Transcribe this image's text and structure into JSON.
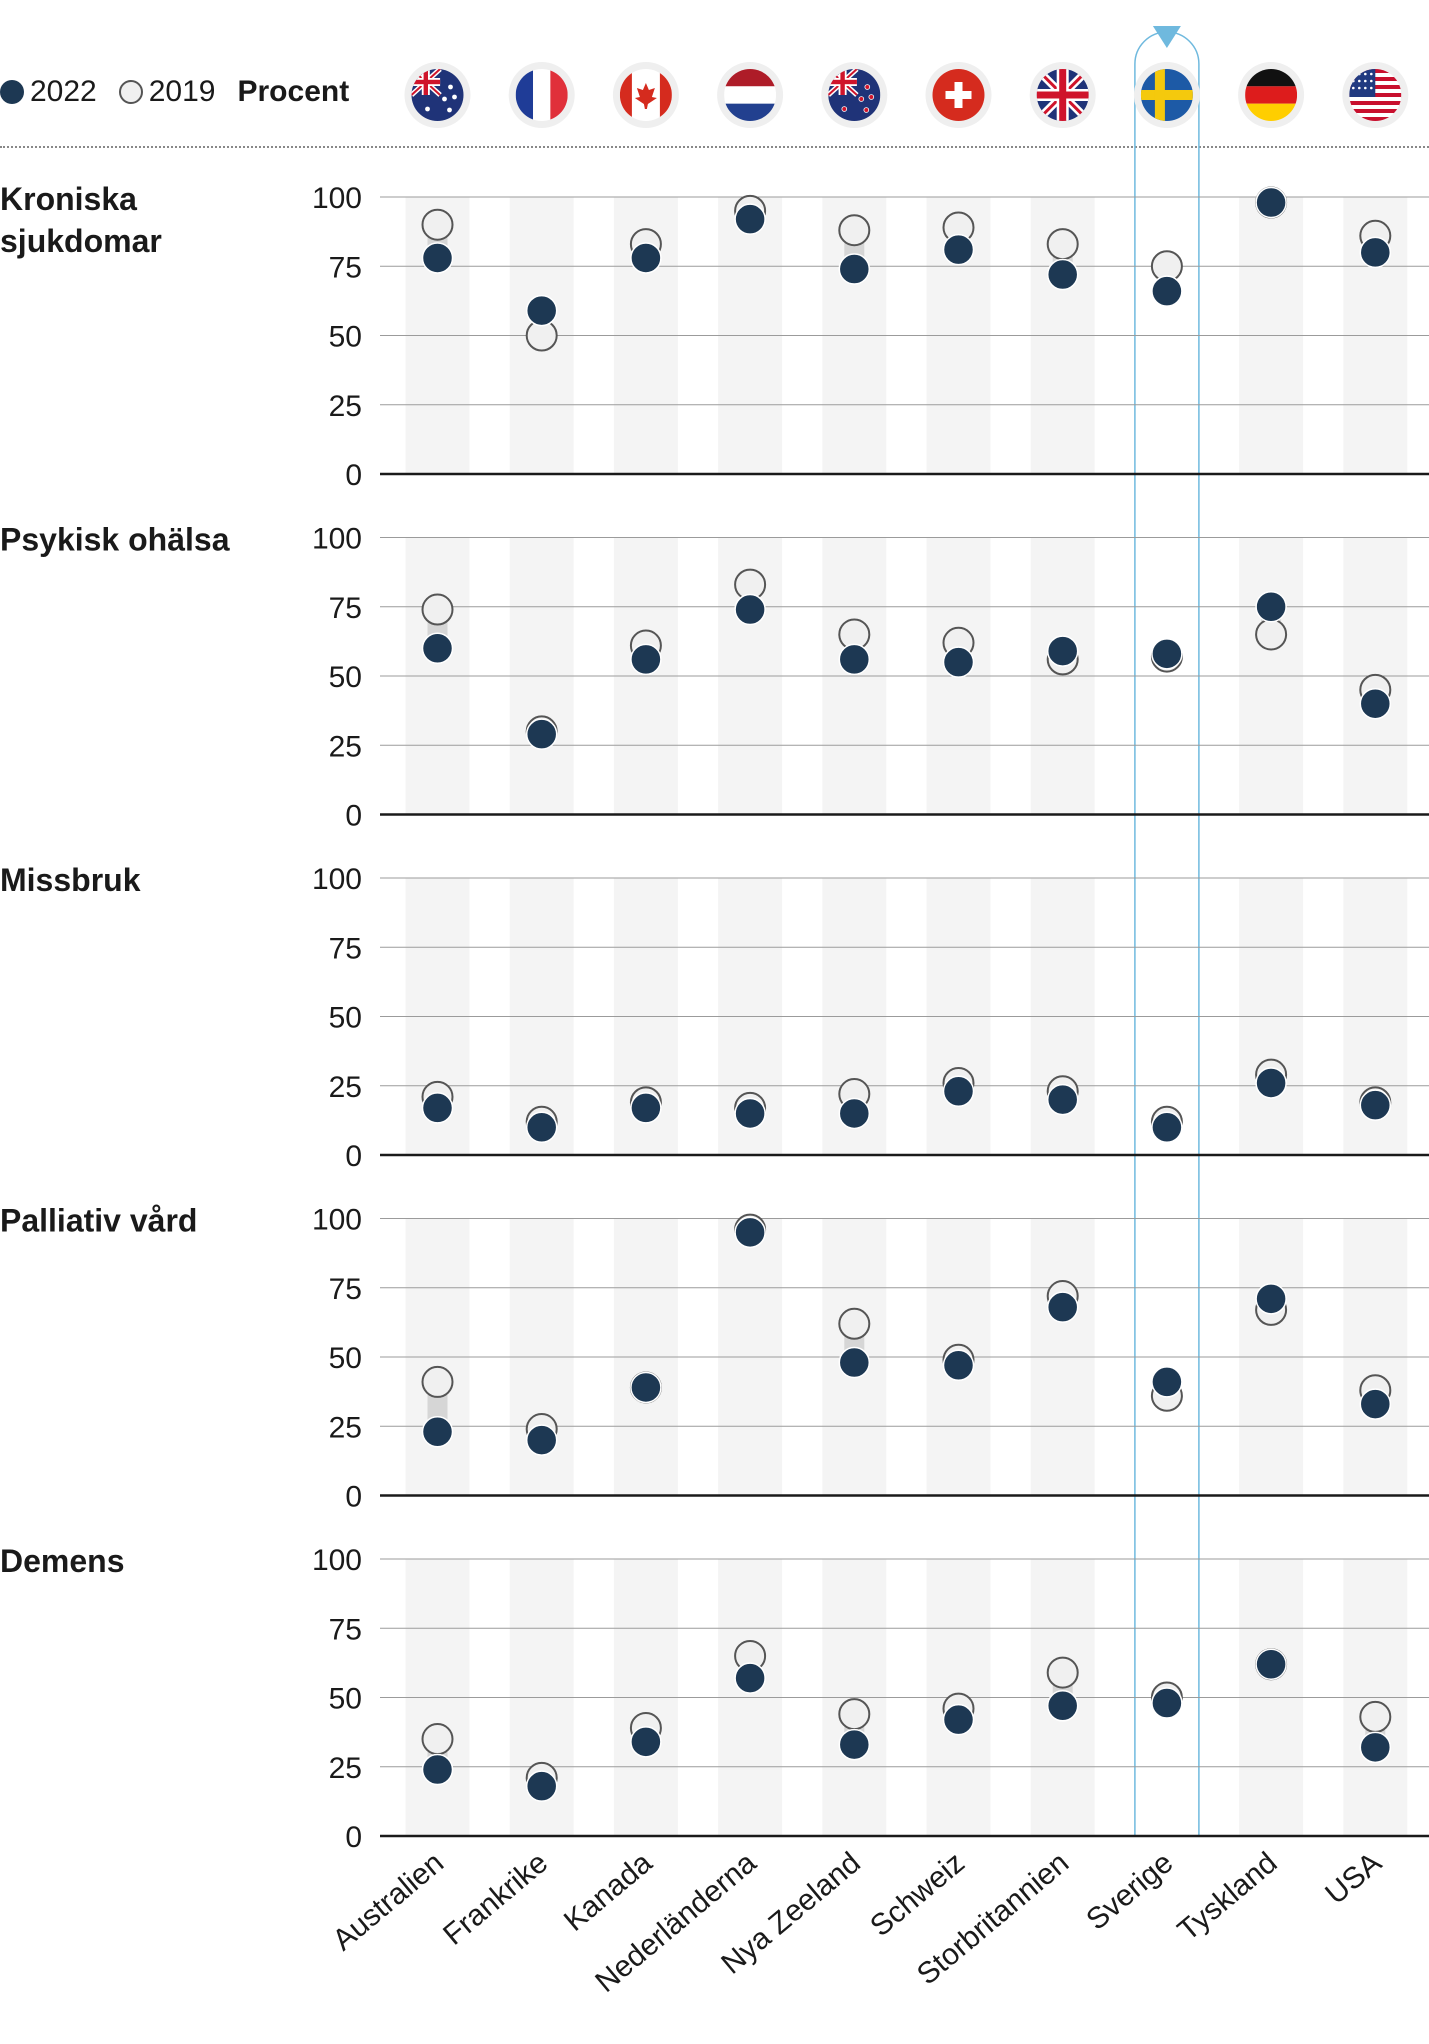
{
  "legend": {
    "label_2022": "2022",
    "label_2019": "2019",
    "unit": "Procent"
  },
  "colors": {
    "dot_2022": "#1d3853",
    "dot_2019": "#f0f0f0",
    "highlight": "#6fb9de",
    "column_bg": "#f4f4f4"
  },
  "highlighted_country": "Sverige",
  "chart_data": {
    "type": "scatter",
    "yaxis": {
      "ylim": [
        0,
        100
      ],
      "ticks": [
        0,
        25,
        50,
        75,
        100
      ]
    },
    "countries": [
      "Australien",
      "Frankrike",
      "Kanada",
      "Nederländerna",
      "Nya Zeeland",
      "Schweiz",
      "Storbritannien",
      "Sverige",
      "Tyskland",
      "USA"
    ],
    "flag_icons": [
      "australia-flag-icon",
      "france-flag-icon",
      "canada-flag-icon",
      "netherlands-flag-icon",
      "new-zealand-flag-icon",
      "switzerland-flag-icon",
      "united-kingdom-flag-icon",
      "sweden-flag-icon",
      "germany-flag-icon",
      "usa-flag-icon"
    ],
    "panels": [
      {
        "title": "Kroniska sjukdomar",
        "values_2019": [
          90,
          50,
          83,
          95,
          88,
          89,
          83,
          75,
          98,
          86
        ],
        "values_2022": [
          78,
          59,
          78,
          92,
          74,
          81,
          72,
          66,
          98,
          80
        ]
      },
      {
        "title": "Psykisk ohälsa",
        "values_2019": [
          74,
          30,
          61,
          83,
          65,
          62,
          56,
          57,
          65,
          45
        ],
        "values_2022": [
          60,
          29,
          56,
          74,
          56,
          55,
          59,
          58,
          75,
          40
        ]
      },
      {
        "title": "Missbruk",
        "values_2019": [
          21,
          12,
          19,
          17,
          22,
          26,
          23,
          12,
          29,
          19
        ],
        "values_2022": [
          17,
          10,
          17,
          15,
          15,
          23,
          20,
          10,
          26,
          18
        ]
      },
      {
        "title": "Palliativ vård",
        "values_2019": [
          41,
          24,
          39,
          96,
          62,
          49,
          72,
          36,
          67,
          38
        ],
        "values_2022": [
          23,
          20,
          39,
          95,
          48,
          47,
          68,
          41,
          71,
          33
        ]
      },
      {
        "title": "Demens",
        "values_2019": [
          35,
          21,
          39,
          65,
          44,
          46,
          59,
          50,
          62,
          43
        ],
        "values_2022": [
          24,
          18,
          34,
          57,
          33,
          42,
          47,
          48,
          62,
          32
        ]
      }
    ]
  }
}
